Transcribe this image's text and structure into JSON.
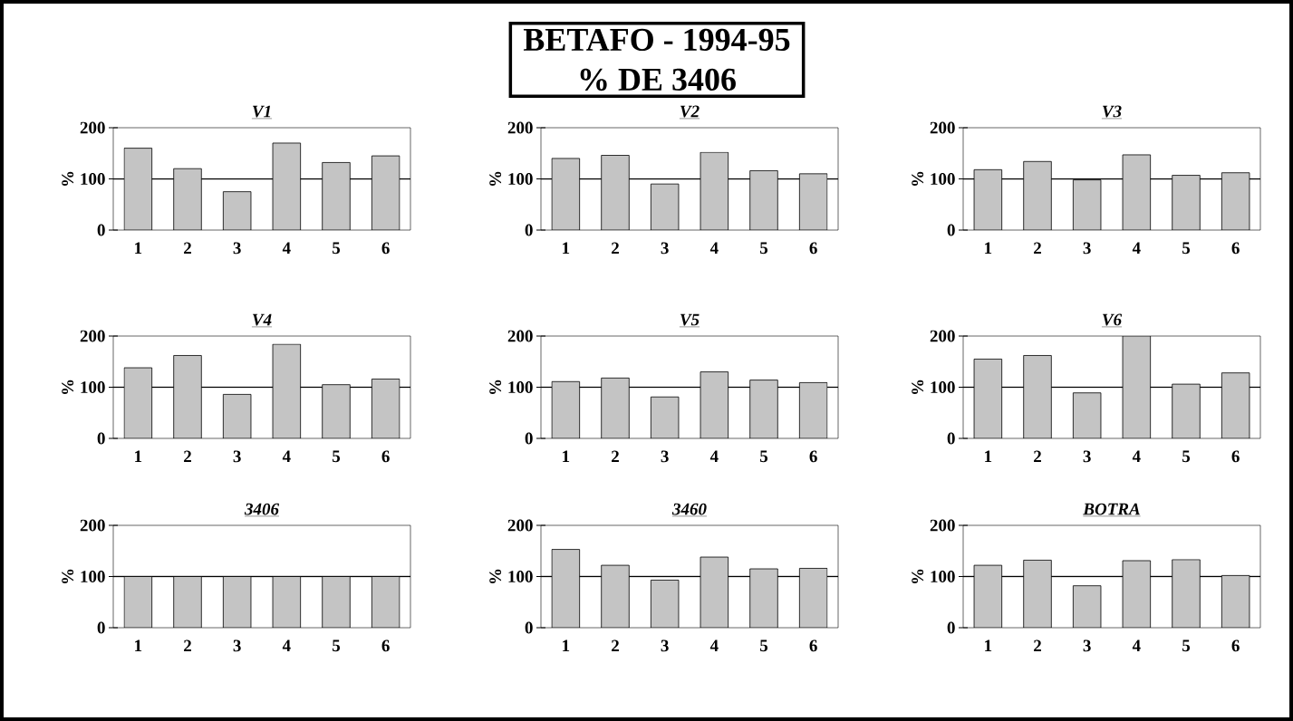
{
  "chart_data": [
    {
      "type": "other",
      "title": "BETAFO - 1994-95",
      "subtitle": "% DE 3406"
    },
    {
      "type": "bar",
      "title": "V1",
      "ylabel": "%",
      "categories": [
        "1",
        "2",
        "3",
        "4",
        "5",
        "6"
      ],
      "values": [
        160,
        120,
        75,
        170,
        132,
        145
      ],
      "color": "#c4c4c4",
      "ylim": [
        0,
        200
      ],
      "yticks": [
        0,
        100,
        200
      ],
      "ref_lines": [
        {
          "axis": "y",
          "value": 100
        }
      ]
    },
    {
      "type": "bar",
      "title": "V2",
      "ylabel": "%",
      "categories": [
        "1",
        "2",
        "3",
        "4",
        "5",
        "6"
      ],
      "values": [
        140,
        146,
        90,
        152,
        116,
        110
      ],
      "color": "#c4c4c4",
      "ylim": [
        0,
        200
      ],
      "yticks": [
        0,
        100,
        200
      ],
      "ref_lines": [
        {
          "axis": "y",
          "value": 100
        }
      ]
    },
    {
      "type": "bar",
      "title": "V3",
      "ylabel": "%",
      "categories": [
        "1",
        "2",
        "3",
        "4",
        "5",
        "6"
      ],
      "values": [
        118,
        134,
        98,
        147,
        107,
        112
      ],
      "color": "#c4c4c4",
      "ylim": [
        0,
        200
      ],
      "yticks": [
        0,
        100,
        200
      ],
      "ref_lines": [
        {
          "axis": "y",
          "value": 100
        }
      ]
    },
    {
      "type": "bar",
      "title": "V4",
      "ylabel": "%",
      "categories": [
        "1",
        "2",
        "3",
        "4",
        "5",
        "6"
      ],
      "values": [
        138,
        162,
        86,
        184,
        105,
        116
      ],
      "color": "#c4c4c4",
      "ylim": [
        0,
        200
      ],
      "yticks": [
        0,
        100,
        200
      ],
      "ref_lines": [
        {
          "axis": "y",
          "value": 100
        }
      ]
    },
    {
      "type": "bar",
      "title": "V5",
      "ylabel": "%",
      "categories": [
        "1",
        "2",
        "3",
        "4",
        "5",
        "6"
      ],
      "values": [
        111,
        118,
        81,
        130,
        114,
        109
      ],
      "color": "#c4c4c4",
      "ylim": [
        0,
        200
      ],
      "yticks": [
        0,
        100,
        200
      ],
      "ref_lines": [
        {
          "axis": "y",
          "value": 100
        }
      ]
    },
    {
      "type": "bar",
      "title": "V6",
      "ylabel": "%",
      "categories": [
        "1",
        "2",
        "3",
        "4",
        "5",
        "6"
      ],
      "values": [
        155,
        162,
        89,
        200,
        106,
        128
      ],
      "color": "#c4c4c4",
      "ylim": [
        0,
        200
      ],
      "yticks": [
        0,
        100,
        200
      ],
      "ref_lines": [
        {
          "axis": "y",
          "value": 100
        }
      ]
    },
    {
      "type": "bar",
      "title": "3406",
      "ylabel": "%",
      "categories": [
        "1",
        "2",
        "3",
        "4",
        "5",
        "6"
      ],
      "values": [
        100,
        100,
        100,
        100,
        100,
        100
      ],
      "color": "#c4c4c4",
      "ylim": [
        0,
        200
      ],
      "yticks": [
        0,
        100,
        200
      ],
      "ref_lines": [
        {
          "axis": "y",
          "value": 100
        }
      ]
    },
    {
      "type": "bar",
      "title": "3460",
      "ylabel": "%",
      "categories": [
        "1",
        "2",
        "3",
        "4",
        "5",
        "6"
      ],
      "values": [
        153,
        122,
        93,
        138,
        115,
        116
      ],
      "color": "#c4c4c4",
      "ylim": [
        0,
        200
      ],
      "yticks": [
        0,
        100,
        200
      ],
      "ref_lines": [
        {
          "axis": "y",
          "value": 100
        }
      ]
    },
    {
      "type": "bar",
      "title": "BOTRA",
      "ylabel": "%",
      "categories": [
        "1",
        "2",
        "3",
        "4",
        "5",
        "6"
      ],
      "values": [
        122,
        132,
        82,
        131,
        133,
        102
      ],
      "color": "#c4c4c4",
      "ylim": [
        0,
        200
      ],
      "yticks": [
        0,
        100,
        200
      ],
      "ref_lines": [
        {
          "axis": "y",
          "value": 100
        }
      ]
    }
  ]
}
